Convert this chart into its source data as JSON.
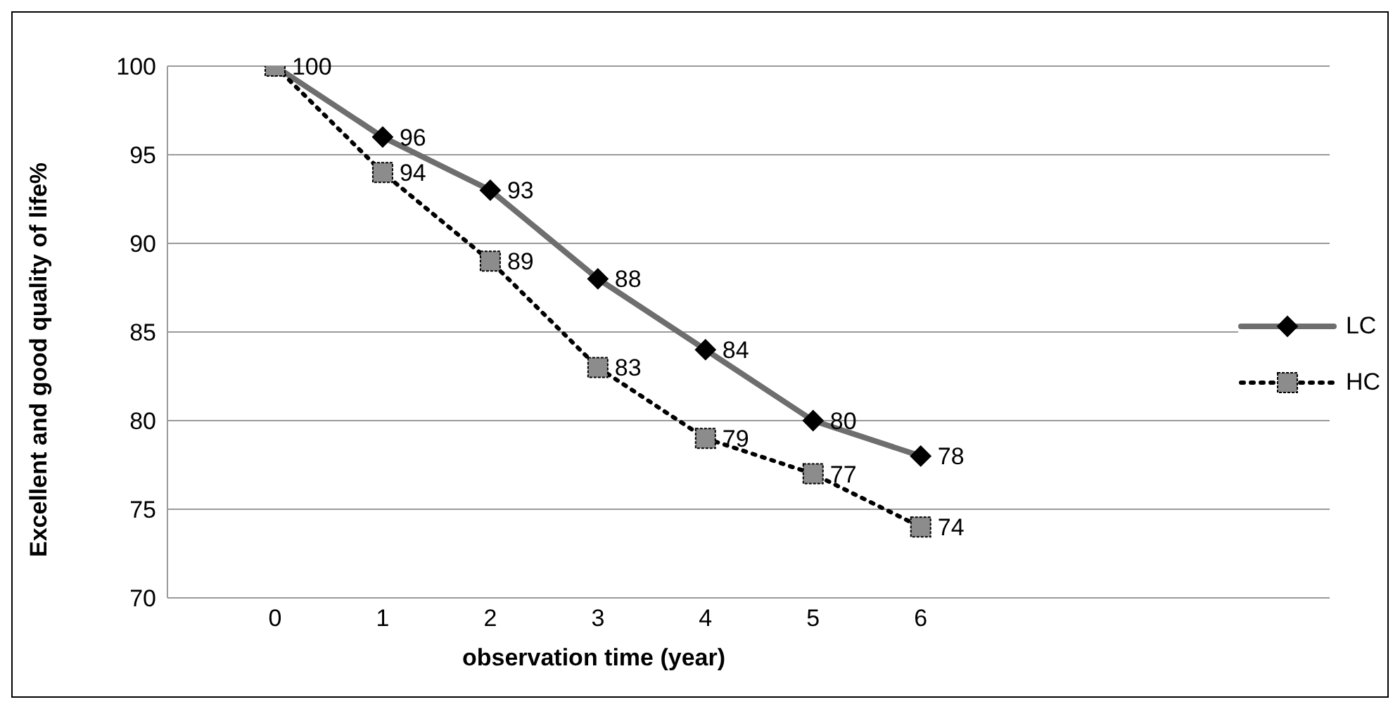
{
  "chart_data": {
    "type": "line",
    "xlabel": "observation time (year)",
    "ylabel": "Excellent and good quality of life%",
    "x": [
      0,
      1,
      2,
      3,
      4,
      5,
      6
    ],
    "series": [
      {
        "name": "LC",
        "color": "#6e6e6e",
        "values": [
          100,
          96,
          93,
          88,
          84,
          80,
          78
        ],
        "marker": "diamond",
        "line_style": "solid"
      },
      {
        "name": "HC",
        "color": "#8c8c8c",
        "values": [
          100,
          94,
          89,
          83,
          79,
          77,
          74
        ],
        "value_labels": [
          null,
          "94",
          "89",
          "83",
          "79",
          "77",
          "74"
        ],
        "marker": "square",
        "line_style": "dotted"
      }
    ],
    "xlim": [
      -1,
      9.8
    ],
    "xticks": [
      0,
      1,
      2,
      3,
      4,
      5,
      6
    ],
    "ylim": [
      70,
      100
    ],
    "yticks": [
      70,
      75,
      80,
      85,
      90,
      95,
      100
    ],
    "grid": "y",
    "legend": "right",
    "data_labels": true
  }
}
